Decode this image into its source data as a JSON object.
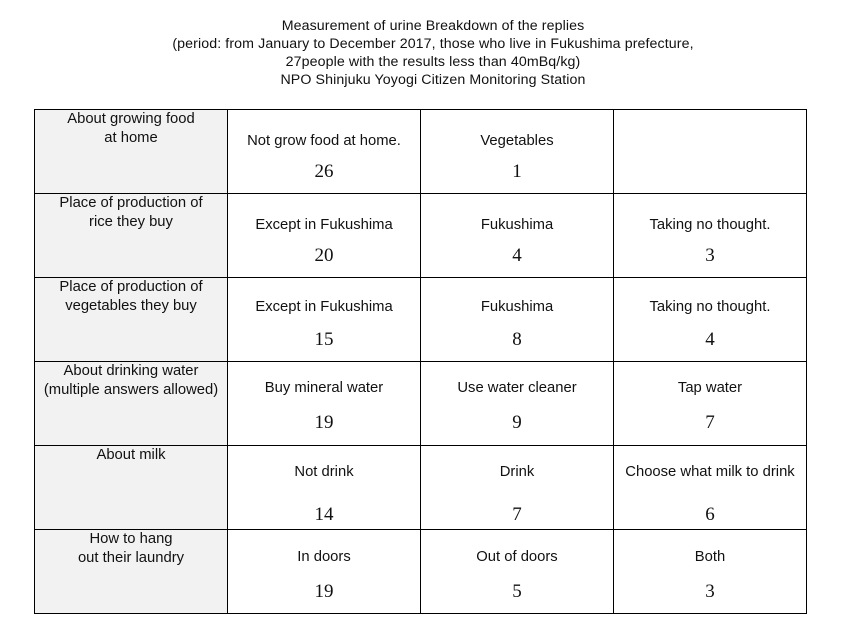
{
  "header": {
    "line1": "Measurement of urine  Breakdown of the replies",
    "line2": "(period: from January to December 2017, those who live in Fukushima prefecture,",
    "line3": "27people with the results less than 40mBq/kg)",
    "line4": "NPO Shinjuku Yoyogi Citizen Monitoring Station"
  },
  "rows": [
    {
      "question_lines": [
        "About growing food",
        "at home"
      ],
      "answers": [
        {
          "label": "Not grow food at home.",
          "count": "26"
        },
        {
          "label": "Vegetables",
          "count": "1"
        },
        {
          "label": "",
          "count": ""
        }
      ]
    },
    {
      "question_lines": [
        "Place of production of",
        "rice they buy"
      ],
      "answers": [
        {
          "label": "Except in Fukushima",
          "count": "20"
        },
        {
          "label": "Fukushima",
          "count": "4"
        },
        {
          "label": "Taking no thought.",
          "count": "3"
        }
      ]
    },
    {
      "question_lines": [
        "Place of production of",
        "vegetables they buy"
      ],
      "answers": [
        {
          "label": "Except in Fukushima",
          "count": "15"
        },
        {
          "label": "Fukushima",
          "count": "8"
        },
        {
          "label": "Taking no thought.",
          "count": "4"
        }
      ]
    },
    {
      "question_lines": [
        "About drinking water",
        "(multiple answers allowed)"
      ],
      "answers": [
        {
          "label": "Buy mineral water",
          "count": "19"
        },
        {
          "label": "Use water cleaner",
          "count": "9"
        },
        {
          "label": "Tap water",
          "count": "7"
        }
      ]
    },
    {
      "question_lines": [
        "About milk",
        ""
      ],
      "answers": [
        {
          "label": "Not drink",
          "count": "14"
        },
        {
          "label": "Drink",
          "count": "7"
        },
        {
          "label": "Choose what milk to drink",
          "count": "6"
        }
      ]
    },
    {
      "question_lines": [
        "How to hang",
        "out their laundry"
      ],
      "answers": [
        {
          "label": "In doors",
          "count": "19"
        },
        {
          "label": "Out of doors",
          "count": "5"
        },
        {
          "label": "Both",
          "count": "3"
        }
      ]
    }
  ]
}
